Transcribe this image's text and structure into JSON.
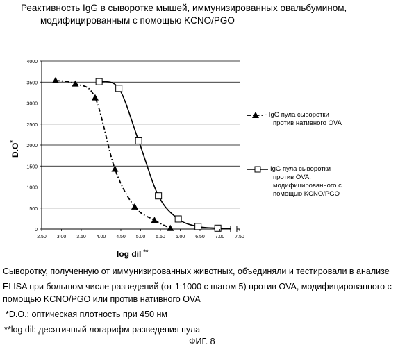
{
  "title": {
    "line1": "Реактивность IgG в сыворотке мышей, иммунизированных овальбумином,",
    "line2": "модифицированным  с помощью KCNO/PGO"
  },
  "chart_data": {
    "type": "line",
    "xlabel": "log dil",
    "xlabel_suffix": "**",
    "ylabel": "D.O",
    "ylabel_suffix": "*",
    "xlim": [
      2.5,
      7.5
    ],
    "ylim": [
      0,
      4000
    ],
    "x_ticks": [
      "2.50",
      "3.00",
      "3.50",
      "4.00",
      "4.50",
      "5.00",
      "5.50",
      "6.00",
      "6.50",
      "7.00",
      "7.50"
    ],
    "y_ticks": [
      "0",
      "500",
      "1000",
      "1500",
      "2000",
      "2500",
      "3000",
      "3500",
      "4000"
    ],
    "grid": "horizontal",
    "legend_position": "right",
    "series": [
      {
        "name": "IgG пула сыворотки против нативного OVA",
        "legend_prefix": "- ",
        "marker": "triangle",
        "line_style": "dash-dot",
        "x": [
          2.85,
          3.35,
          3.85,
          4.35,
          4.85,
          5.35,
          5.75
        ],
        "y": [
          3540,
          3460,
          3130,
          1430,
          530,
          210,
          20
        ]
      },
      {
        "name": "IgG пула сыворотки против OVA, модифицированного с помощью KCNO/PGO",
        "marker": "square",
        "line_style": "solid",
        "x": [
          3.95,
          4.45,
          4.95,
          5.45,
          5.95,
          6.45,
          6.95,
          7.35
        ],
        "y": [
          3510,
          3350,
          2100,
          790,
          240,
          60,
          20,
          0
        ]
      }
    ]
  },
  "legend": {
    "item1_lines": [
      "- IgG пула сыворотки",
      "против нативного OVA"
    ],
    "item2_lines": [
      "IgG пула сыворотки",
      "против OVA,",
      "модифицированного с",
      "помощью KCNO/PGO"
    ]
  },
  "captions": {
    "line1": "Сыворотку, полученную от иммунизированных животных, объединяли и тестировали в анализе",
    "line2": "ELISA при большом числе разведений (от 1:1000 с шагом 5) против OVA, модифицированного с",
    "line3": "помощью KCNO/PGO или против нативного OVA",
    "line4": "*D.O.: оптическая плотность при 450 нм",
    "line5": "**log dil: десятичный логарифм разведения пула"
  },
  "figure_label": "ФИГ. 8"
}
